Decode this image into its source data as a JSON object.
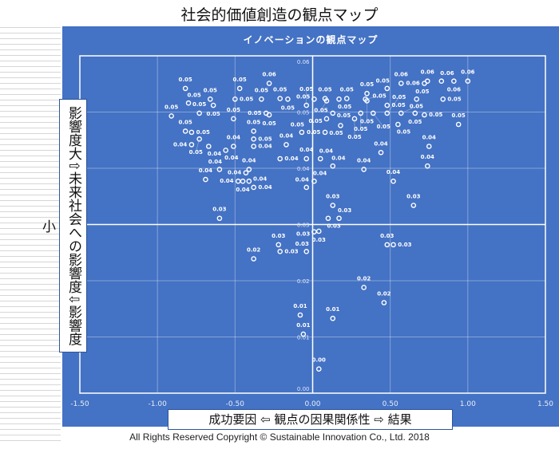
{
  "header": {
    "title": "社会的価値創造の観点マップ"
  },
  "footer": {
    "copyright": "All Rights Reserved Copyright  © Sustainable Innovation  Co., Ltd.  2018"
  },
  "colors": {
    "panel": "#4472C4",
    "marker": "#FFFFFF"
  },
  "y_label": {
    "top": "影響度大",
    "arrow_up": "⇧",
    "middle": "未来社会への影響度",
    "arrow_down": "⇩",
    "bottom": "影響度小"
  },
  "x_label": {
    "left": "成功要因",
    "arrow_left": "⇦",
    "middle": "観点の因果関係性",
    "arrow_right": "⇨",
    "right": "結果"
  },
  "chart_data": {
    "type": "scatter",
    "title": "イノベーションの観点マップ",
    "xlim": [
      -1.5,
      1.5
    ],
    "ylim": [
      0,
      0.06
    ],
    "x_ticks": [
      "-1.50",
      "-1.00",
      "-0.50",
      "0.00",
      "0.50",
      "1.00",
      "1.50"
    ],
    "y_ticks": [
      "0.00",
      "0.01",
      "0.02",
      "0.03",
      "0.04",
      "0.05",
      "0.06"
    ],
    "grid": true,
    "axis_cross": {
      "x": 0,
      "y": 0.03
    },
    "points": [
      [
        -0.82,
        0.0542,
        "0.05"
      ],
      [
        -0.47,
        0.0542,
        "0.05"
      ],
      [
        -0.28,
        0.0551,
        "0.06"
      ],
      [
        -0.8,
        0.0516,
        "0.05"
      ],
      [
        -0.66,
        0.0523,
        "0.05"
      ],
      [
        -0.64,
        0.0512,
        "0.05"
      ],
      [
        -0.5,
        0.0523,
        "0.05"
      ],
      [
        -0.73,
        0.0498,
        "0.05"
      ],
      [
        -0.91,
        0.0493,
        "0.05"
      ],
      [
        -0.33,
        0.0523,
        "0.05"
      ],
      [
        -0.21,
        0.0524,
        "0.05"
      ],
      [
        -0.16,
        0.0523,
        "0.05"
      ],
      [
        -0.3,
        0.0498,
        "0.05"
      ],
      [
        -0.28,
        0.0495,
        "0.05"
      ],
      [
        -0.51,
        0.0488,
        "0.05"
      ],
      [
        -0.82,
        0.0466,
        "0.05"
      ],
      [
        -0.78,
        0.0464,
        "0.05"
      ],
      [
        -0.73,
        0.0452,
        "0.05"
      ],
      [
        -0.78,
        0.0442,
        "0.04"
      ],
      [
        -0.67,
        0.0439,
        "0.04"
      ],
      [
        -0.56,
        0.0432,
        "0.04"
      ],
      [
        -0.51,
        0.0439,
        "0.04"
      ],
      [
        -0.38,
        0.0466,
        "0.05"
      ],
      [
        -0.38,
        0.0452,
        "0.05"
      ],
      [
        -0.38,
        0.0439,
        "0.04"
      ],
      [
        -0.17,
        0.0442,
        "0.04"
      ],
      [
        -0.21,
        0.0417,
        "0.04"
      ],
      [
        -0.6,
        0.0398,
        "0.04"
      ],
      [
        -0.69,
        0.038,
        "0.04"
      ],
      [
        -0.48,
        0.0377,
        "0.04"
      ],
      [
        -0.45,
        0.0377,
        "0.04"
      ],
      [
        -0.41,
        0.0377,
        "0.04"
      ],
      [
        -0.41,
        0.0398,
        "0.04"
      ],
      [
        -0.43,
        0.0392,
        "0.04"
      ],
      [
        -0.38,
        0.0366,
        "0.04"
      ],
      [
        -0.6,
        0.0311,
        "0.03"
      ],
      [
        -0.07,
        0.0464,
        "0.05"
      ],
      [
        -0.04,
        0.0512,
        "0.05"
      ],
      [
        0.01,
        0.0523,
        "0.05"
      ],
      [
        -0.04,
        0.0417,
        "0.04"
      ],
      [
        0.01,
        0.0377,
        "0.04"
      ],
      [
        -0.04,
        0.0366,
        "0.04"
      ],
      [
        0.05,
        0.0417,
        "0.04"
      ],
      [
        0.08,
        0.0524,
        "0.05"
      ],
      [
        0.09,
        0.052,
        "0.05"
      ],
      [
        0.17,
        0.0523,
        "0.05"
      ],
      [
        0.22,
        0.0524,
        "0.05"
      ],
      [
        0.13,
        0.0498,
        "0.05"
      ],
      [
        0.09,
        0.0488,
        "0.05"
      ],
      [
        0.08,
        0.0464,
        "0.05"
      ],
      [
        0.18,
        0.0476,
        "0.05"
      ],
      [
        0.27,
        0.0488,
        "0.05"
      ],
      [
        0.31,
        0.0498,
        "0.05"
      ],
      [
        0.39,
        0.0498,
        "0.05"
      ],
      [
        0.35,
        0.0533,
        "0.05"
      ],
      [
        0.34,
        0.0523,
        "0.05"
      ],
      [
        0.35,
        0.052,
        "0.05"
      ],
      [
        0.48,
        0.0542,
        "0.05"
      ],
      [
        0.57,
        0.0551,
        "0.06"
      ],
      [
        0.48,
        0.0512,
        "0.05"
      ],
      [
        0.48,
        0.0498,
        "0.05"
      ],
      [
        0.57,
        0.0498,
        "0.05"
      ],
      [
        0.55,
        0.0478,
        "0.05"
      ],
      [
        0.66,
        0.0498,
        "0.05"
      ],
      [
        0.67,
        0.0523,
        "0.05"
      ],
      [
        0.72,
        0.0495,
        "0.05"
      ],
      [
        0.72,
        0.0551,
        "0.06"
      ],
      [
        0.74,
        0.0555,
        "0.06"
      ],
      [
        0.83,
        0.0555,
        "0.06"
      ],
      [
        0.91,
        0.0555,
        "0.06"
      ],
      [
        1.0,
        0.0555,
        "0.06"
      ],
      [
        0.84,
        0.0523,
        "0.05"
      ],
      [
        0.94,
        0.0478,
        "0.05"
      ],
      [
        0.44,
        0.0428,
        "0.04"
      ],
      [
        0.75,
        0.0439,
        "0.04"
      ],
      [
        0.74,
        0.0404,
        "0.04"
      ],
      [
        0.13,
        0.0404,
        "0.04"
      ],
      [
        0.33,
        0.0398,
        "0.04"
      ],
      [
        0.52,
        0.0377,
        "0.04"
      ],
      [
        0.13,
        0.0334,
        "0.03"
      ],
      [
        0.1,
        0.0311,
        "0.03"
      ],
      [
        0.17,
        0.0311,
        "0.03"
      ],
      [
        0.65,
        0.0334,
        "0.03"
      ],
      [
        0.01,
        0.0287,
        "0.03"
      ],
      [
        0.04,
        0.0288,
        "0.03"
      ],
      [
        -0.38,
        0.0239,
        "0.02"
      ],
      [
        -0.22,
        0.0264,
        "0.03"
      ],
      [
        -0.21,
        0.0252,
        "0.03"
      ],
      [
        -0.04,
        0.0252,
        "0.03"
      ],
      [
        0.48,
        0.0264,
        "0.03"
      ],
      [
        0.52,
        0.0264,
        "0.03"
      ],
      [
        0.33,
        0.0188,
        "0.02"
      ],
      [
        0.46,
        0.0161,
        "0.02"
      ],
      [
        -0.08,
        0.0139,
        "0.01"
      ],
      [
        0.13,
        0.0133,
        "0.01"
      ],
      [
        -0.06,
        0.0105,
        "0.01"
      ],
      [
        0.04,
        0.0043,
        "0.00"
      ]
    ]
  }
}
